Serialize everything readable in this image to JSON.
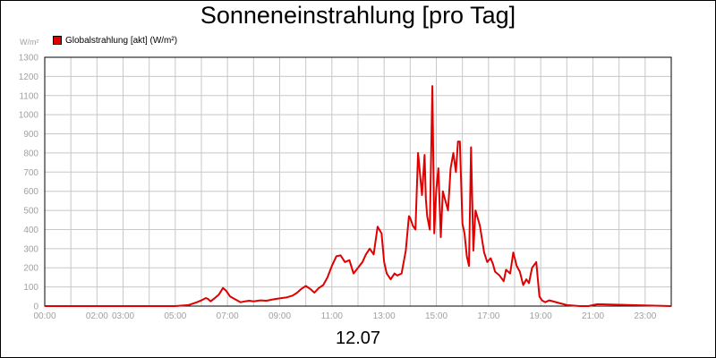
{
  "chart_data": {
    "type": "line",
    "title": "Sonneneinstrahlung [pro Tag]",
    "y_unit": "W/m²",
    "date_label": "12.07",
    "ylim": [
      0,
      1300
    ],
    "y_ticks": [
      0,
      100,
      200,
      300,
      400,
      500,
      600,
      700,
      800,
      900,
      1000,
      1100,
      1200,
      1300
    ],
    "xlim": [
      0,
      24
    ],
    "x_ticks": [
      {
        "hour": 0,
        "label": "00:00"
      },
      {
        "hour": 2,
        "label": "02:00"
      },
      {
        "hour": 3,
        "label": "03:00"
      },
      {
        "hour": 5,
        "label": "05:00"
      },
      {
        "hour": 7,
        "label": "07:00"
      },
      {
        "hour": 9,
        "label": "09:00"
      },
      {
        "hour": 11,
        "label": "11:00"
      },
      {
        "hour": 13,
        "label": "13:00"
      },
      {
        "hour": 15,
        "label": "15:00"
      },
      {
        "hour": 17,
        "label": "17:00"
      },
      {
        "hour": 19,
        "label": "19:00"
      },
      {
        "hour": 21,
        "label": "21:00"
      },
      {
        "hour": 23,
        "label": "23:00"
      }
    ],
    "grid": true,
    "legend_position": "top-left",
    "colors": {
      "series": "#e00000",
      "grid": "#c8c8c8",
      "tick_text": "#a0a0a0",
      "axis": "#000000"
    },
    "series": [
      {
        "name": "Globalstrahlung [akt] (W/m²)",
        "x": [
          0,
          5.0,
          5.5,
          5.83,
          6.0,
          6.17,
          6.25,
          6.35,
          6.5,
          6.67,
          6.83,
          6.95,
          7.1,
          7.3,
          7.5,
          7.67,
          7.83,
          8.0,
          8.25,
          8.5,
          8.75,
          9.0,
          9.25,
          9.5,
          9.67,
          9.83,
          10.0,
          10.17,
          10.33,
          10.5,
          10.67,
          10.83,
          11.0,
          11.17,
          11.33,
          11.5,
          11.67,
          11.83,
          12.0,
          12.17,
          12.3,
          12.45,
          12.6,
          12.75,
          12.9,
          13.0,
          13.1,
          13.25,
          13.4,
          13.5,
          13.67,
          13.83,
          13.95,
          14.0,
          14.1,
          14.2,
          14.3,
          14.45,
          14.55,
          14.6,
          14.65,
          14.75,
          14.85,
          14.92,
          15.0,
          15.08,
          15.17,
          15.25,
          15.33,
          15.45,
          15.55,
          15.65,
          15.75,
          15.83,
          15.9,
          16.0,
          16.08,
          16.17,
          16.25,
          16.33,
          16.42,
          16.5,
          16.67,
          16.83,
          16.95,
          17.08,
          17.17,
          17.25,
          17.42,
          17.58,
          17.67,
          17.83,
          17.95,
          18.08,
          18.2,
          18.33,
          18.45,
          18.55,
          18.67,
          18.83,
          18.95,
          19.05,
          19.17,
          19.33,
          20.0,
          20.5,
          20.83,
          21.0,
          21.17,
          24.0
        ],
        "y": [
          0,
          0,
          5,
          20,
          30,
          42,
          38,
          25,
          40,
          60,
          95,
          80,
          50,
          35,
          20,
          25,
          28,
          25,
          30,
          28,
          35,
          40,
          45,
          55,
          70,
          90,
          105,
          90,
          70,
          95,
          110,
          150,
          210,
          260,
          265,
          230,
          240,
          170,
          200,
          230,
          270,
          300,
          270,
          415,
          380,
          230,
          170,
          140,
          170,
          160,
          170,
          290,
          470,
          460,
          420,
          400,
          800,
          580,
          790,
          560,
          470,
          400,
          1150,
          380,
          610,
          720,
          360,
          600,
          560,
          500,
          720,
          800,
          700,
          860,
          860,
          430,
          380,
          260,
          210,
          830,
          290,
          500,
          420,
          280,
          230,
          250,
          220,
          180,
          160,
          130,
          190,
          170,
          280,
          210,
          180,
          110,
          140,
          120,
          200,
          230,
          50,
          30,
          20,
          30,
          5,
          0,
          0,
          5,
          10,
          0
        ]
      }
    ]
  }
}
